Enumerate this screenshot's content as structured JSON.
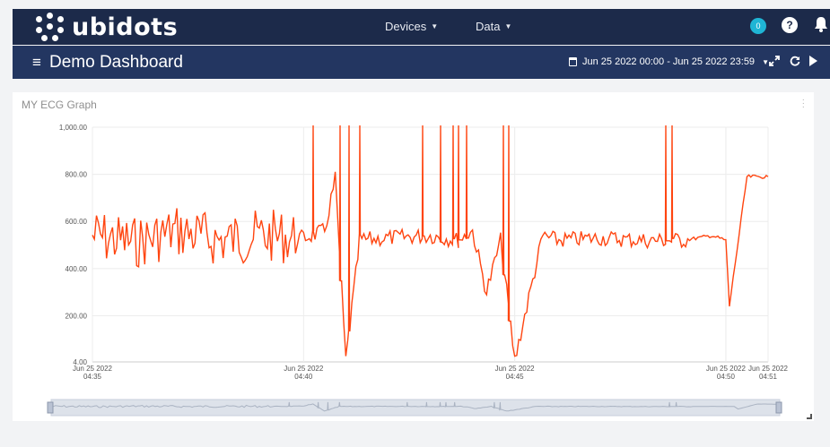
{
  "brand": {
    "name": "ubidots"
  },
  "nav": {
    "devices": "Devices",
    "data": "Data"
  },
  "notifications": {
    "count": "0"
  },
  "help": {
    "label": "?"
  },
  "dashboard": {
    "title": "Demo Dashboard",
    "date_range": "Jun 25 2022 00:00 - Jun 25 2022 23:59"
  },
  "widget": {
    "title": "MY ECG Graph",
    "line_color": "#ff4510"
  },
  "chart_data": {
    "type": "line",
    "title": "MY ECG Graph",
    "ylim": [
      4,
      1000
    ],
    "y_ticks": [
      "4.00",
      "200.00",
      "400.00",
      "600.00",
      "800.00",
      "1,000.00"
    ],
    "x_ticks": [
      {
        "date": "Jun 25 2022",
        "time": "04:35"
      },
      {
        "date": "Jun 25 2022",
        "time": "04:40"
      },
      {
        "date": "Jun 25 2022",
        "time": "04:45"
      },
      {
        "date": "Jun 25 2022",
        "time": "04:50"
      },
      {
        "date": "Jun 25 2022",
        "time": "04:51"
      }
    ],
    "grid": true,
    "series": [
      {
        "color": "#ff4510",
        "x": [
          "04:35:00",
          "04:36:00",
          "04:37:00",
          "04:38:00",
          "04:39:00",
          "04:40:00",
          "04:40:30",
          "04:40:45",
          "04:41:00",
          "04:41:20",
          "04:42:00",
          "04:43:00",
          "04:43:40",
          "04:44:00",
          "04:44:20",
          "04:44:40",
          "04:45:00",
          "04:45:40",
          "04:46:00",
          "04:47:00",
          "04:48:00",
          "04:49:00",
          "04:49:40",
          "04:50:00",
          "04:50:05",
          "04:50:30",
          "04:51:00"
        ],
        "values": [
          540,
          510,
          560,
          520,
          540,
          530,
          560,
          780,
          10,
          520,
          530,
          540,
          520,
          560,
          300,
          520,
          10,
          540,
          520,
          530,
          520,
          520,
          540,
          520,
          240,
          790,
          790
        ]
      }
    ]
  }
}
